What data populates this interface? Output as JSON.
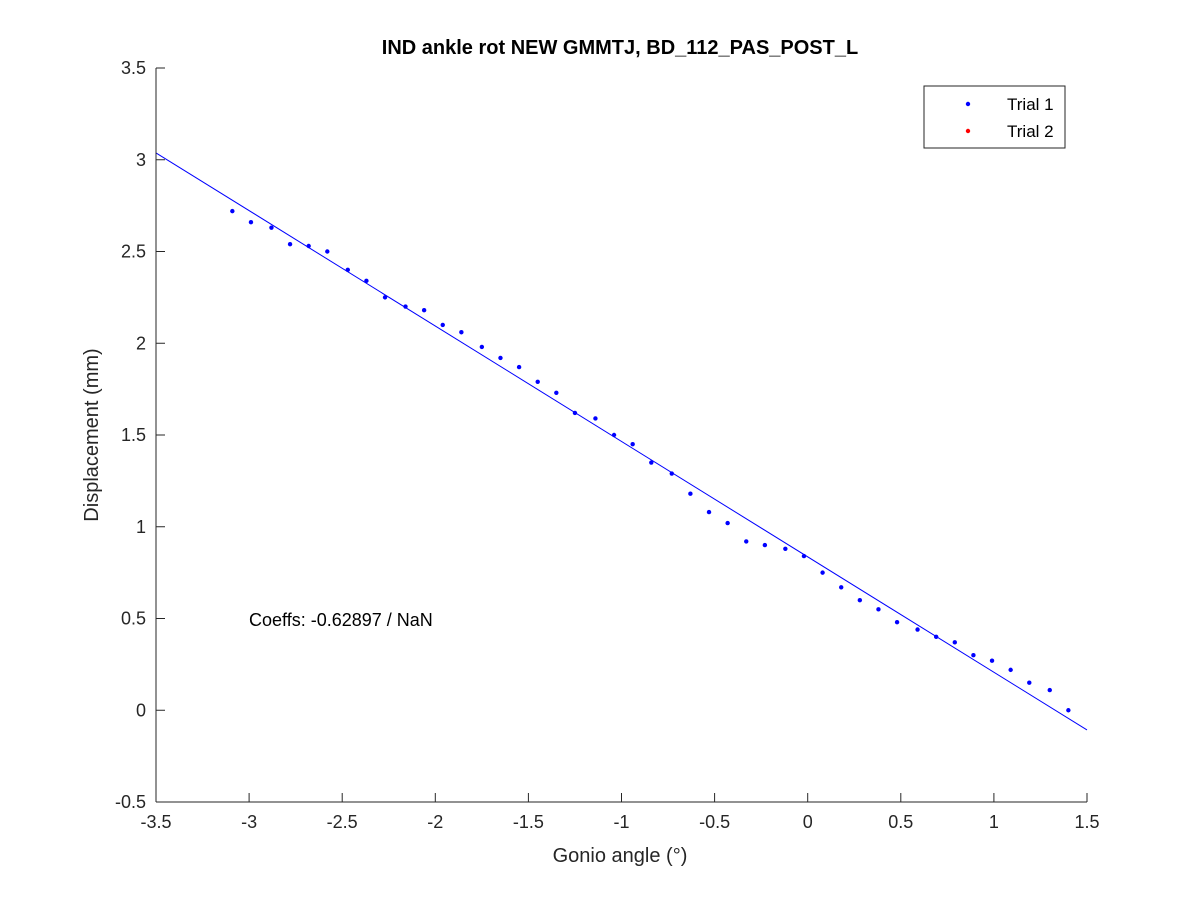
{
  "chart_data": {
    "type": "scatter",
    "title": "IND ankle rot NEW GMMTJ, BD_112_PAS_POST_L",
    "xlabel": "Gonio angle (°)",
    "ylabel": "Displacement (mm)",
    "xlim": [
      -3.5,
      1.5
    ],
    "ylim": [
      -0.5,
      3.5
    ],
    "xticks": [
      "-3.5",
      "-3",
      "-2.5",
      "-2",
      "-1.5",
      "-1",
      "-0.5",
      "0",
      "0.5",
      "1",
      "1.5"
    ],
    "yticks": [
      "-0.5",
      "0",
      "0.5",
      "1",
      "1.5",
      "2",
      "2.5",
      "3",
      "3.5"
    ],
    "grid": false,
    "legend_position": "top-right",
    "series": [
      {
        "name": "Trial 1",
        "color": "#0000ff",
        "x": [
          -3.09,
          -2.99,
          -2.88,
          -2.78,
          -2.68,
          -2.58,
          -2.47,
          -2.37,
          -2.27,
          -2.16,
          -2.06,
          -1.96,
          -1.86,
          -1.75,
          -1.65,
          -1.55,
          -1.45,
          -1.35,
          -1.25,
          -1.14,
          -1.04,
          -0.94,
          -0.84,
          -0.73,
          -0.63,
          -0.53,
          -0.43,
          -0.33,
          -0.23,
          -0.12,
          -0.02,
          0.08,
          0.18,
          0.28,
          0.38,
          0.48,
          0.59,
          0.69,
          0.79,
          0.89,
          0.99,
          1.09,
          1.19,
          1.3,
          1.4
        ],
        "y": [
          2.72,
          2.66,
          2.63,
          2.54,
          2.53,
          2.5,
          2.4,
          2.34,
          2.25,
          2.2,
          2.18,
          2.1,
          2.06,
          1.98,
          1.92,
          1.87,
          1.79,
          1.73,
          1.62,
          1.59,
          1.5,
          1.45,
          1.35,
          1.29,
          1.18,
          1.08,
          1.02,
          0.92,
          0.9,
          0.88,
          0.84,
          0.75,
          0.67,
          0.6,
          0.55,
          0.48,
          0.44,
          0.4,
          0.37,
          0.3,
          0.27,
          0.22,
          0.15,
          0.11,
          0.0
        ]
      },
      {
        "name": "Trial 2",
        "color": "#ff0000",
        "x": [],
        "y": []
      }
    ],
    "fit_line": {
      "color": "#0000ff",
      "slope": -0.62897,
      "intercept": 0.836,
      "x_range": [
        -3.5,
        1.5
      ]
    },
    "annotation": "Coeffs: -0.62897 / NaN"
  }
}
